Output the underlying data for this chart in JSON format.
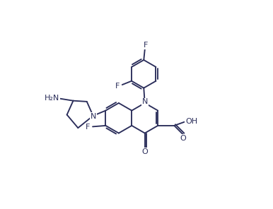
{
  "line_color": "#2a2d5a",
  "bg_color": "#ffffff",
  "lw": 1.35,
  "fs": 7.5,
  "figsize": [
    3.86,
    2.96
  ],
  "dpi": 100,
  "xlim": [
    -1,
    11
  ],
  "ylim": [
    -0.5,
    9.5
  ]
}
